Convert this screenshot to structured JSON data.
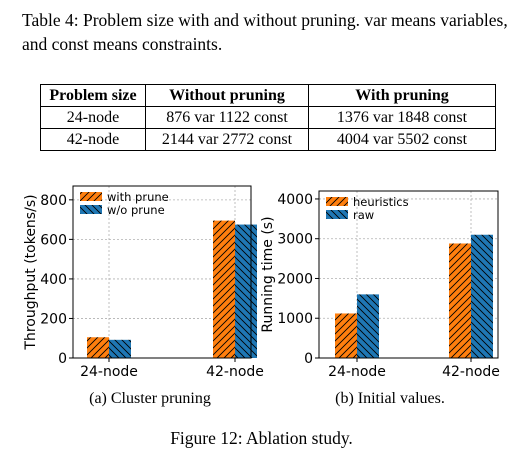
{
  "table_caption": "Table 4: Problem size with and without pruning. var means variables, and const means constraints.",
  "table": {
    "headers": [
      "Problem size",
      "Without pruning",
      "With pruning"
    ],
    "rows": [
      [
        "24-node",
        "876 var 1122 const",
        "1376 var 1848 const"
      ],
      [
        "42-node",
        "2144 var 2772 const",
        "4004 var 5502 const"
      ]
    ]
  },
  "colors": {
    "orange": "#ff7f0e",
    "blue": "#1f77b4"
  },
  "chart_data": [
    {
      "type": "bar",
      "categories": [
        "24-node",
        "42-node"
      ],
      "series": [
        {
          "name": "with prune",
          "values": [
            105,
            695
          ]
        },
        {
          "name": "w/o prune",
          "values": [
            92,
            675
          ]
        }
      ],
      "ylabel": "Throughput (tokens/s)",
      "xlabel": "",
      "yticks": [
        0,
        200,
        400,
        600,
        800
      ],
      "ylim": [
        0,
        870
      ],
      "grid": true,
      "legend": "top-left",
      "caption": "(a) Cluster pruning"
    },
    {
      "type": "bar",
      "categories": [
        "24-node",
        "42-node"
      ],
      "series": [
        {
          "name": "heuristics",
          "values": [
            1120,
            2880
          ]
        },
        {
          "name": "raw",
          "values": [
            1600,
            3100
          ]
        }
      ],
      "ylabel": "Running time (s)",
      "xlabel": "",
      "yticks": [
        0,
        1000,
        2000,
        3000,
        4000
      ],
      "ylim": [
        0,
        4200
      ],
      "grid": true,
      "legend": "top-left",
      "caption": "(b) Initial values."
    }
  ],
  "figure_caption": "Figure 12: Ablation study."
}
